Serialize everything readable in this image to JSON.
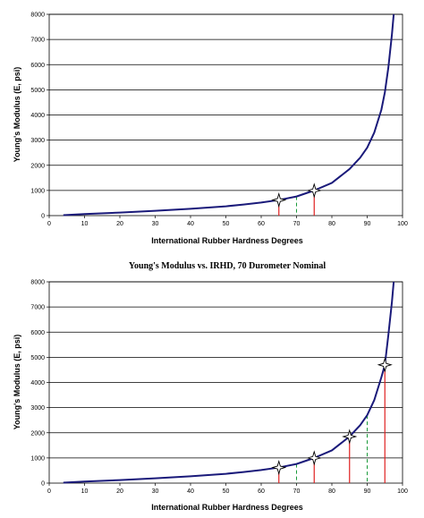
{
  "chart_data": [
    {
      "type": "line",
      "title": "",
      "xlabel": "International Rubber Hardness Degrees",
      "ylabel": "Young's Modulus (E, psi)",
      "xlim": [
        0,
        100
      ],
      "ylim": [
        0,
        8000
      ],
      "xticks": [
        0,
        10,
        20,
        30,
        40,
        50,
        60,
        70,
        80,
        90,
        100
      ],
      "yticks": [
        0,
        1000,
        2000,
        3000,
        4000,
        5000,
        6000,
        7000,
        8000
      ],
      "grid": "horizontal",
      "series": [
        {
          "x": [
            4,
            10,
            20,
            30,
            40,
            50,
            55,
            60,
            65,
            70,
            75,
            80,
            85,
            88,
            90,
            92,
            94,
            95,
            96,
            97,
            97.5
          ],
          "y": [
            20,
            60,
            120,
            190,
            270,
            370,
            440,
            520,
            620,
            760,
            1000,
            1300,
            1850,
            2300,
            2700,
            3300,
            4200,
            4900,
            5900,
            7200,
            8000
          ]
        }
      ],
      "markers": [
        {
          "x": 65,
          "y": 620
        },
        {
          "x": 75,
          "y": 1000
        }
      ],
      "solid_droplines": [
        {
          "x": 65,
          "y": 620
        },
        {
          "x": 75,
          "y": 1000
        }
      ],
      "dashed_droplines": [
        {
          "x": 70,
          "y": 760
        }
      ]
    },
    {
      "type": "line",
      "title": "Young's Modulus vs. IRHD, 70 Durometer Nominal",
      "xlabel": "International Rubber Hardness Degrees",
      "ylabel": "Young's Modulus (E, psi)",
      "xlim": [
        0,
        100
      ],
      "ylim": [
        0,
        8000
      ],
      "xticks": [
        0,
        10,
        20,
        30,
        40,
        50,
        60,
        70,
        80,
        90,
        100
      ],
      "yticks": [
        0,
        1000,
        2000,
        3000,
        4000,
        5000,
        6000,
        7000,
        8000
      ],
      "grid": "horizontal",
      "series": [
        {
          "x": [
            4,
            10,
            20,
            30,
            40,
            50,
            55,
            60,
            65,
            70,
            75,
            80,
            85,
            88,
            90,
            92,
            94,
            95,
            96,
            97,
            97.5
          ],
          "y": [
            20,
            60,
            120,
            190,
            270,
            370,
            440,
            520,
            620,
            760,
            1000,
            1300,
            1850,
            2300,
            2700,
            3300,
            4200,
            4700,
            5900,
            7200,
            8000
          ]
        }
      ],
      "markers": [
        {
          "x": 65,
          "y": 620
        },
        {
          "x": 75,
          "y": 1000
        },
        {
          "x": 85,
          "y": 1850
        },
        {
          "x": 95,
          "y": 4700
        }
      ],
      "solid_droplines": [
        {
          "x": 65,
          "y": 620
        },
        {
          "x": 75,
          "y": 1000
        },
        {
          "x": 85,
          "y": 1850
        },
        {
          "x": 95,
          "y": 4700
        }
      ],
      "dashed_droplines": [
        {
          "x": 70,
          "y": 760
        },
        {
          "x": 90,
          "y": 2700
        }
      ]
    }
  ]
}
